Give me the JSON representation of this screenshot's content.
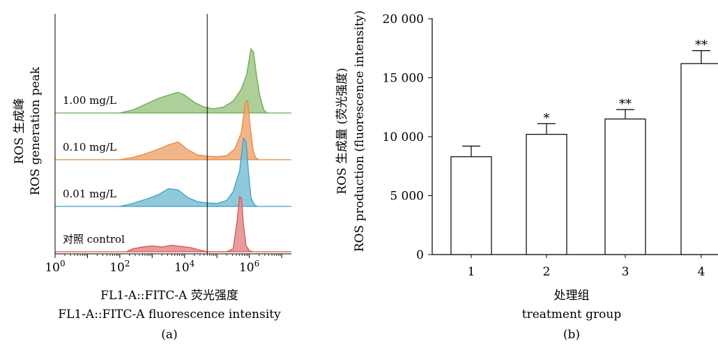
{
  "panels": {
    "a": {
      "label": "(a)",
      "ylabel_cn": "ROS 生成峰",
      "ylabel_en": "ROS generation peak",
      "xlabel_cn": "FL1-A::FITC-A 荧光强度",
      "xlabel_en": "FL1-A::FITC-A fluorescence intensity"
    },
    "b": {
      "label": "(b)",
      "ylabel_cn": "ROS 生成量 (荧光强度)",
      "ylabel_en": "ROS production (fluorescence intensity)",
      "xlabel_cn": "处理组",
      "xlabel_en": "treatment group"
    }
  },
  "chart_data": [
    {
      "type": "area",
      "xscale": "log",
      "xlim_log10": [
        0,
        7.3
      ],
      "x_ticks": [
        {
          "base": "10",
          "exp": "0"
        },
        {
          "base": "10",
          "exp": "2"
        },
        {
          "base": "10",
          "exp": "4"
        },
        {
          "base": "10",
          "exp": "6"
        }
      ],
      "gate_log10": 4.7,
      "series": [
        {
          "name": "对照 control",
          "color": "#d9534f",
          "fill": "#e3898e",
          "points": [
            [
              2.2,
              0.0
            ],
            [
              2.4,
              0.05
            ],
            [
              2.7,
              0.08
            ],
            [
              3.0,
              0.1
            ],
            [
              3.3,
              0.08
            ],
            [
              3.6,
              0.11
            ],
            [
              3.9,
              0.09
            ],
            [
              4.2,
              0.07
            ],
            [
              4.45,
              0.03
            ],
            [
              4.7,
              0.0
            ],
            [
              5.3,
              0.0
            ],
            [
              5.5,
              0.05
            ],
            [
              5.62,
              0.5
            ],
            [
              5.7,
              0.93
            ],
            [
              5.76,
              0.9
            ],
            [
              5.82,
              0.45
            ],
            [
              5.9,
              0.1
            ],
            [
              6.0,
              0.02
            ],
            [
              6.1,
              0.0
            ]
          ]
        },
        {
          "name": "0.01 mg/L",
          "color": "#3ca0c0",
          "fill": "#7cc0d6",
          "points": [
            [
              2.0,
              0.0
            ],
            [
              2.4,
              0.05
            ],
            [
              2.8,
              0.12
            ],
            [
              3.2,
              0.2
            ],
            [
              3.5,
              0.3
            ],
            [
              3.8,
              0.28
            ],
            [
              4.1,
              0.15
            ],
            [
              4.4,
              0.08
            ],
            [
              4.7,
              0.06
            ],
            [
              5.0,
              0.05
            ],
            [
              5.3,
              0.1
            ],
            [
              5.5,
              0.25
            ],
            [
              5.7,
              0.6
            ],
            [
              5.82,
              1.15
            ],
            [
              5.9,
              1.1
            ],
            [
              5.98,
              0.55
            ],
            [
              6.05,
              0.15
            ],
            [
              6.15,
              0.03
            ],
            [
              6.25,
              0.0
            ]
          ]
        },
        {
          "name": "0.10 mg/L",
          "color": "#e8883a",
          "fill": "#eea878",
          "points": [
            [
              2.0,
              0.0
            ],
            [
              2.4,
              0.04
            ],
            [
              2.8,
              0.1
            ],
            [
              3.2,
              0.18
            ],
            [
              3.5,
              0.25
            ],
            [
              3.8,
              0.3
            ],
            [
              4.1,
              0.17
            ],
            [
              4.4,
              0.08
            ],
            [
              4.7,
              0.06
            ],
            [
              5.0,
              0.05
            ],
            [
              5.3,
              0.07
            ],
            [
              5.55,
              0.18
            ],
            [
              5.75,
              0.45
            ],
            [
              5.88,
              0.97
            ],
            [
              5.95,
              1.0
            ],
            [
              6.03,
              0.55
            ],
            [
              6.12,
              0.15
            ],
            [
              6.2,
              0.03
            ],
            [
              6.3,
              0.0
            ]
          ]
        },
        {
          "name": "1.00 mg/L",
          "color": "#6aa84f",
          "fill": "#9fc786",
          "points": [
            [
              2.0,
              0.0
            ],
            [
              2.4,
              0.05
            ],
            [
              2.8,
              0.15
            ],
            [
              3.2,
              0.25
            ],
            [
              3.5,
              0.3
            ],
            [
              3.8,
              0.35
            ],
            [
              4.0,
              0.3
            ],
            [
              4.3,
              0.18
            ],
            [
              4.6,
              0.1
            ],
            [
              4.9,
              0.07
            ],
            [
              5.2,
              0.1
            ],
            [
              5.5,
              0.2
            ],
            [
              5.75,
              0.4
            ],
            [
              5.92,
              0.65
            ],
            [
              6.05,
              1.08
            ],
            [
              6.13,
              1.03
            ],
            [
              6.22,
              0.65
            ],
            [
              6.32,
              0.3
            ],
            [
              6.45,
              0.05
            ],
            [
              6.55,
              0.0
            ]
          ]
        }
      ]
    },
    {
      "type": "bar",
      "categories": [
        "1",
        "2",
        "3",
        "4"
      ],
      "values": [
        8300,
        10200,
        11500,
        16200
      ],
      "errors": [
        900,
        900,
        800,
        1100
      ],
      "significance": [
        "",
        "*",
        "**",
        "**"
      ],
      "ylim": [
        0,
        20000
      ],
      "y_ticks": [
        0,
        5000,
        10000,
        15000,
        20000
      ],
      "y_tick_labels": [
        "0",
        "5 000",
        "10 000",
        "15 000",
        "20 000"
      ]
    }
  ]
}
